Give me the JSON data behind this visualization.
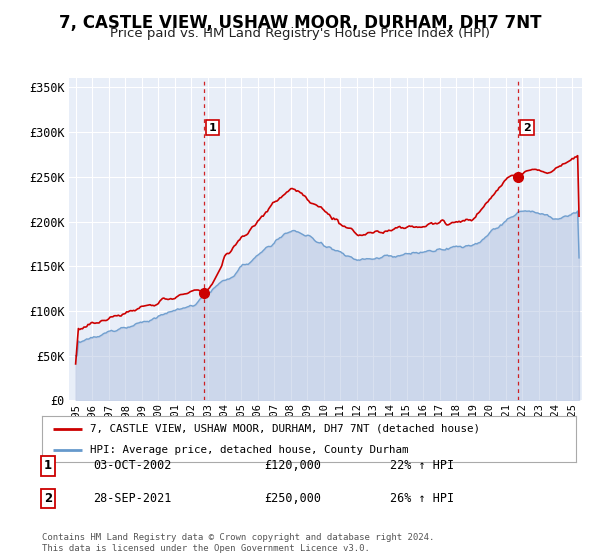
{
  "title": "7, CASTLE VIEW, USHAW MOOR, DURHAM, DH7 7NT",
  "subtitle": "Price paid vs. HM Land Registry's House Price Index (HPI)",
  "ylim": [
    0,
    360000
  ],
  "xlim_start": 1994.6,
  "xlim_end": 2025.6,
  "yticks": [
    0,
    50000,
    100000,
    150000,
    200000,
    250000,
    300000,
    350000
  ],
  "ytick_labels": [
    "£0",
    "£50K",
    "£100K",
    "£150K",
    "£200K",
    "£250K",
    "£300K",
    "£350K"
  ],
  "xticks": [
    1995,
    1996,
    1997,
    1998,
    1999,
    2000,
    2001,
    2002,
    2003,
    2004,
    2005,
    2006,
    2007,
    2008,
    2009,
    2010,
    2011,
    2012,
    2013,
    2014,
    2015,
    2016,
    2017,
    2018,
    2019,
    2020,
    2021,
    2022,
    2023,
    2024,
    2025
  ],
  "background_color": "#e8eef8",
  "grid_color": "#ffffff",
  "title_fontsize": 12,
  "subtitle_fontsize": 9.5,
  "property_color": "#cc0000",
  "hpi_color": "#6699cc",
  "hpi_fill_color": "#aabbdd",
  "sale1_x": 2002.75,
  "sale1_y": 120000,
  "sale1_label": "1",
  "sale1_date": "03-OCT-2002",
  "sale1_price": "£120,000",
  "sale1_hpi": "22% ↑ HPI",
  "sale2_x": 2021.74,
  "sale2_y": 250000,
  "sale2_label": "2",
  "sale2_date": "28-SEP-2021",
  "sale2_price": "£250,000",
  "sale2_hpi": "26% ↑ HPI",
  "legend_property_label": "7, CASTLE VIEW, USHAW MOOR, DURHAM, DH7 7NT (detached house)",
  "legend_hpi_label": "HPI: Average price, detached house, County Durham",
  "footnote": "Contains HM Land Registry data © Crown copyright and database right 2024.\nThis data is licensed under the Open Government Licence v3.0."
}
